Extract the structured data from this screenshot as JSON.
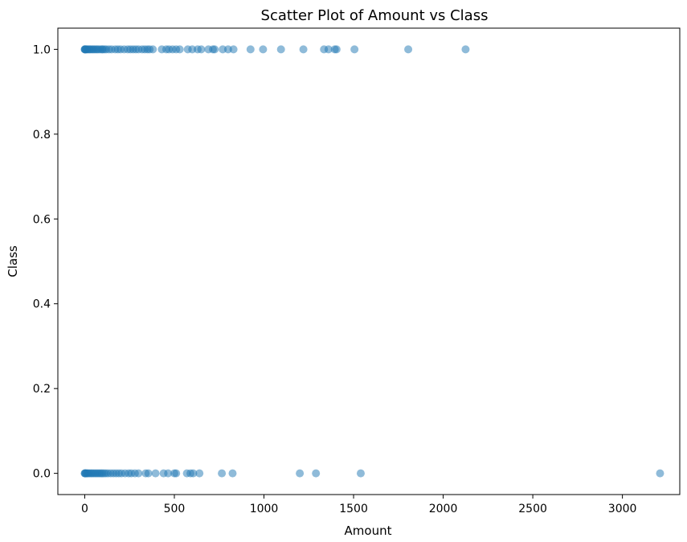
{
  "chart_data": {
    "type": "scatter",
    "title": "Scatter Plot of Amount vs Class",
    "xlabel": "Amount",
    "ylabel": "Class",
    "xlim": [
      -150,
      3320
    ],
    "ylim": [
      -0.05,
      1.05
    ],
    "xticks": [
      0,
      500,
      1000,
      1500,
      2000,
      2500,
      3000
    ],
    "xtick_labels": [
      "0",
      "500",
      "1000",
      "1500",
      "2000",
      "2500",
      "3000"
    ],
    "yticks": [
      0.0,
      0.2,
      0.4,
      0.6,
      0.8,
      1.0
    ],
    "ytick_labels": [
      "0.0",
      "0.2",
      "0.4",
      "0.6",
      "0.8",
      "1.0"
    ],
    "grid": false,
    "marker_color": "#1f77b4",
    "marker_alpha": 0.5,
    "series": [
      {
        "points": [
          {
            "x": 0,
            "y": 1
          },
          {
            "x": 1,
            "y": 1
          },
          {
            "x": 2,
            "y": 1
          },
          {
            "x": 4,
            "y": 1
          },
          {
            "x": 8,
            "y": 1
          },
          {
            "x": 12,
            "y": 1
          },
          {
            "x": 18,
            "y": 1
          },
          {
            "x": 25,
            "y": 1
          },
          {
            "x": 30,
            "y": 1
          },
          {
            "x": 38,
            "y": 1
          },
          {
            "x": 45,
            "y": 1
          },
          {
            "x": 52,
            "y": 1
          },
          {
            "x": 60,
            "y": 1
          },
          {
            "x": 68,
            "y": 1
          },
          {
            "x": 75,
            "y": 1
          },
          {
            "x": 85,
            "y": 1
          },
          {
            "x": 95,
            "y": 1
          },
          {
            "x": 100,
            "y": 1
          },
          {
            "x": 110,
            "y": 1
          },
          {
            "x": 120,
            "y": 1
          },
          {
            "x": 135,
            "y": 1
          },
          {
            "x": 150,
            "y": 1
          },
          {
            "x": 170,
            "y": 1
          },
          {
            "x": 185,
            "y": 1
          },
          {
            "x": 200,
            "y": 1
          },
          {
            "x": 220,
            "y": 1
          },
          {
            "x": 240,
            "y": 1
          },
          {
            "x": 255,
            "y": 1
          },
          {
            "x": 270,
            "y": 1
          },
          {
            "x": 285,
            "y": 1
          },
          {
            "x": 300,
            "y": 1
          },
          {
            "x": 320,
            "y": 1
          },
          {
            "x": 335,
            "y": 1
          },
          {
            "x": 350,
            "y": 1
          },
          {
            "x": 362,
            "y": 1
          },
          {
            "x": 380,
            "y": 1
          },
          {
            "x": 430,
            "y": 1
          },
          {
            "x": 455,
            "y": 1
          },
          {
            "x": 470,
            "y": 1
          },
          {
            "x": 490,
            "y": 1
          },
          {
            "x": 510,
            "y": 1
          },
          {
            "x": 530,
            "y": 1
          },
          {
            "x": 575,
            "y": 1
          },
          {
            "x": 600,
            "y": 1
          },
          {
            "x": 630,
            "y": 1
          },
          {
            "x": 650,
            "y": 1
          },
          {
            "x": 690,
            "y": 1
          },
          {
            "x": 715,
            "y": 1
          },
          {
            "x": 725,
            "y": 1
          },
          {
            "x": 770,
            "y": 1
          },
          {
            "x": 800,
            "y": 1
          },
          {
            "x": 830,
            "y": 1
          },
          {
            "x": 925,
            "y": 1
          },
          {
            "x": 995,
            "y": 1
          },
          {
            "x": 1095,
            "y": 1
          },
          {
            "x": 1220,
            "y": 1
          },
          {
            "x": 1335,
            "y": 1
          },
          {
            "x": 1360,
            "y": 1
          },
          {
            "x": 1395,
            "y": 1
          },
          {
            "x": 1405,
            "y": 1
          },
          {
            "x": 1505,
            "y": 1
          },
          {
            "x": 1805,
            "y": 1
          },
          {
            "x": 2125,
            "y": 1
          },
          {
            "x": 0,
            "y": 0
          },
          {
            "x": 1,
            "y": 0
          },
          {
            "x": 3,
            "y": 0
          },
          {
            "x": 6,
            "y": 0
          },
          {
            "x": 10,
            "y": 0
          },
          {
            "x": 15,
            "y": 0
          },
          {
            "x": 20,
            "y": 0
          },
          {
            "x": 28,
            "y": 0
          },
          {
            "x": 35,
            "y": 0
          },
          {
            "x": 42,
            "y": 0
          },
          {
            "x": 50,
            "y": 0
          },
          {
            "x": 58,
            "y": 0
          },
          {
            "x": 66,
            "y": 0
          },
          {
            "x": 74,
            "y": 0
          },
          {
            "x": 82,
            "y": 0
          },
          {
            "x": 90,
            "y": 0
          },
          {
            "x": 98,
            "y": 0
          },
          {
            "x": 108,
            "y": 0
          },
          {
            "x": 118,
            "y": 0
          },
          {
            "x": 130,
            "y": 0
          },
          {
            "x": 145,
            "y": 0
          },
          {
            "x": 160,
            "y": 0
          },
          {
            "x": 175,
            "y": 0
          },
          {
            "x": 190,
            "y": 0
          },
          {
            "x": 205,
            "y": 0
          },
          {
            "x": 225,
            "y": 0
          },
          {
            "x": 245,
            "y": 0
          },
          {
            "x": 260,
            "y": 0
          },
          {
            "x": 280,
            "y": 0
          },
          {
            "x": 300,
            "y": 0
          },
          {
            "x": 340,
            "y": 0
          },
          {
            "x": 355,
            "y": 0
          },
          {
            "x": 395,
            "y": 0
          },
          {
            "x": 440,
            "y": 0
          },
          {
            "x": 465,
            "y": 0
          },
          {
            "x": 500,
            "y": 0
          },
          {
            "x": 510,
            "y": 0
          },
          {
            "x": 570,
            "y": 0
          },
          {
            "x": 590,
            "y": 0
          },
          {
            "x": 605,
            "y": 0
          },
          {
            "x": 640,
            "y": 0
          },
          {
            "x": 765,
            "y": 0
          },
          {
            "x": 825,
            "y": 0
          },
          {
            "x": 1200,
            "y": 0
          },
          {
            "x": 1290,
            "y": 0
          },
          {
            "x": 1540,
            "y": 0
          },
          {
            "x": 3210,
            "y": 0
          }
        ]
      }
    ]
  }
}
